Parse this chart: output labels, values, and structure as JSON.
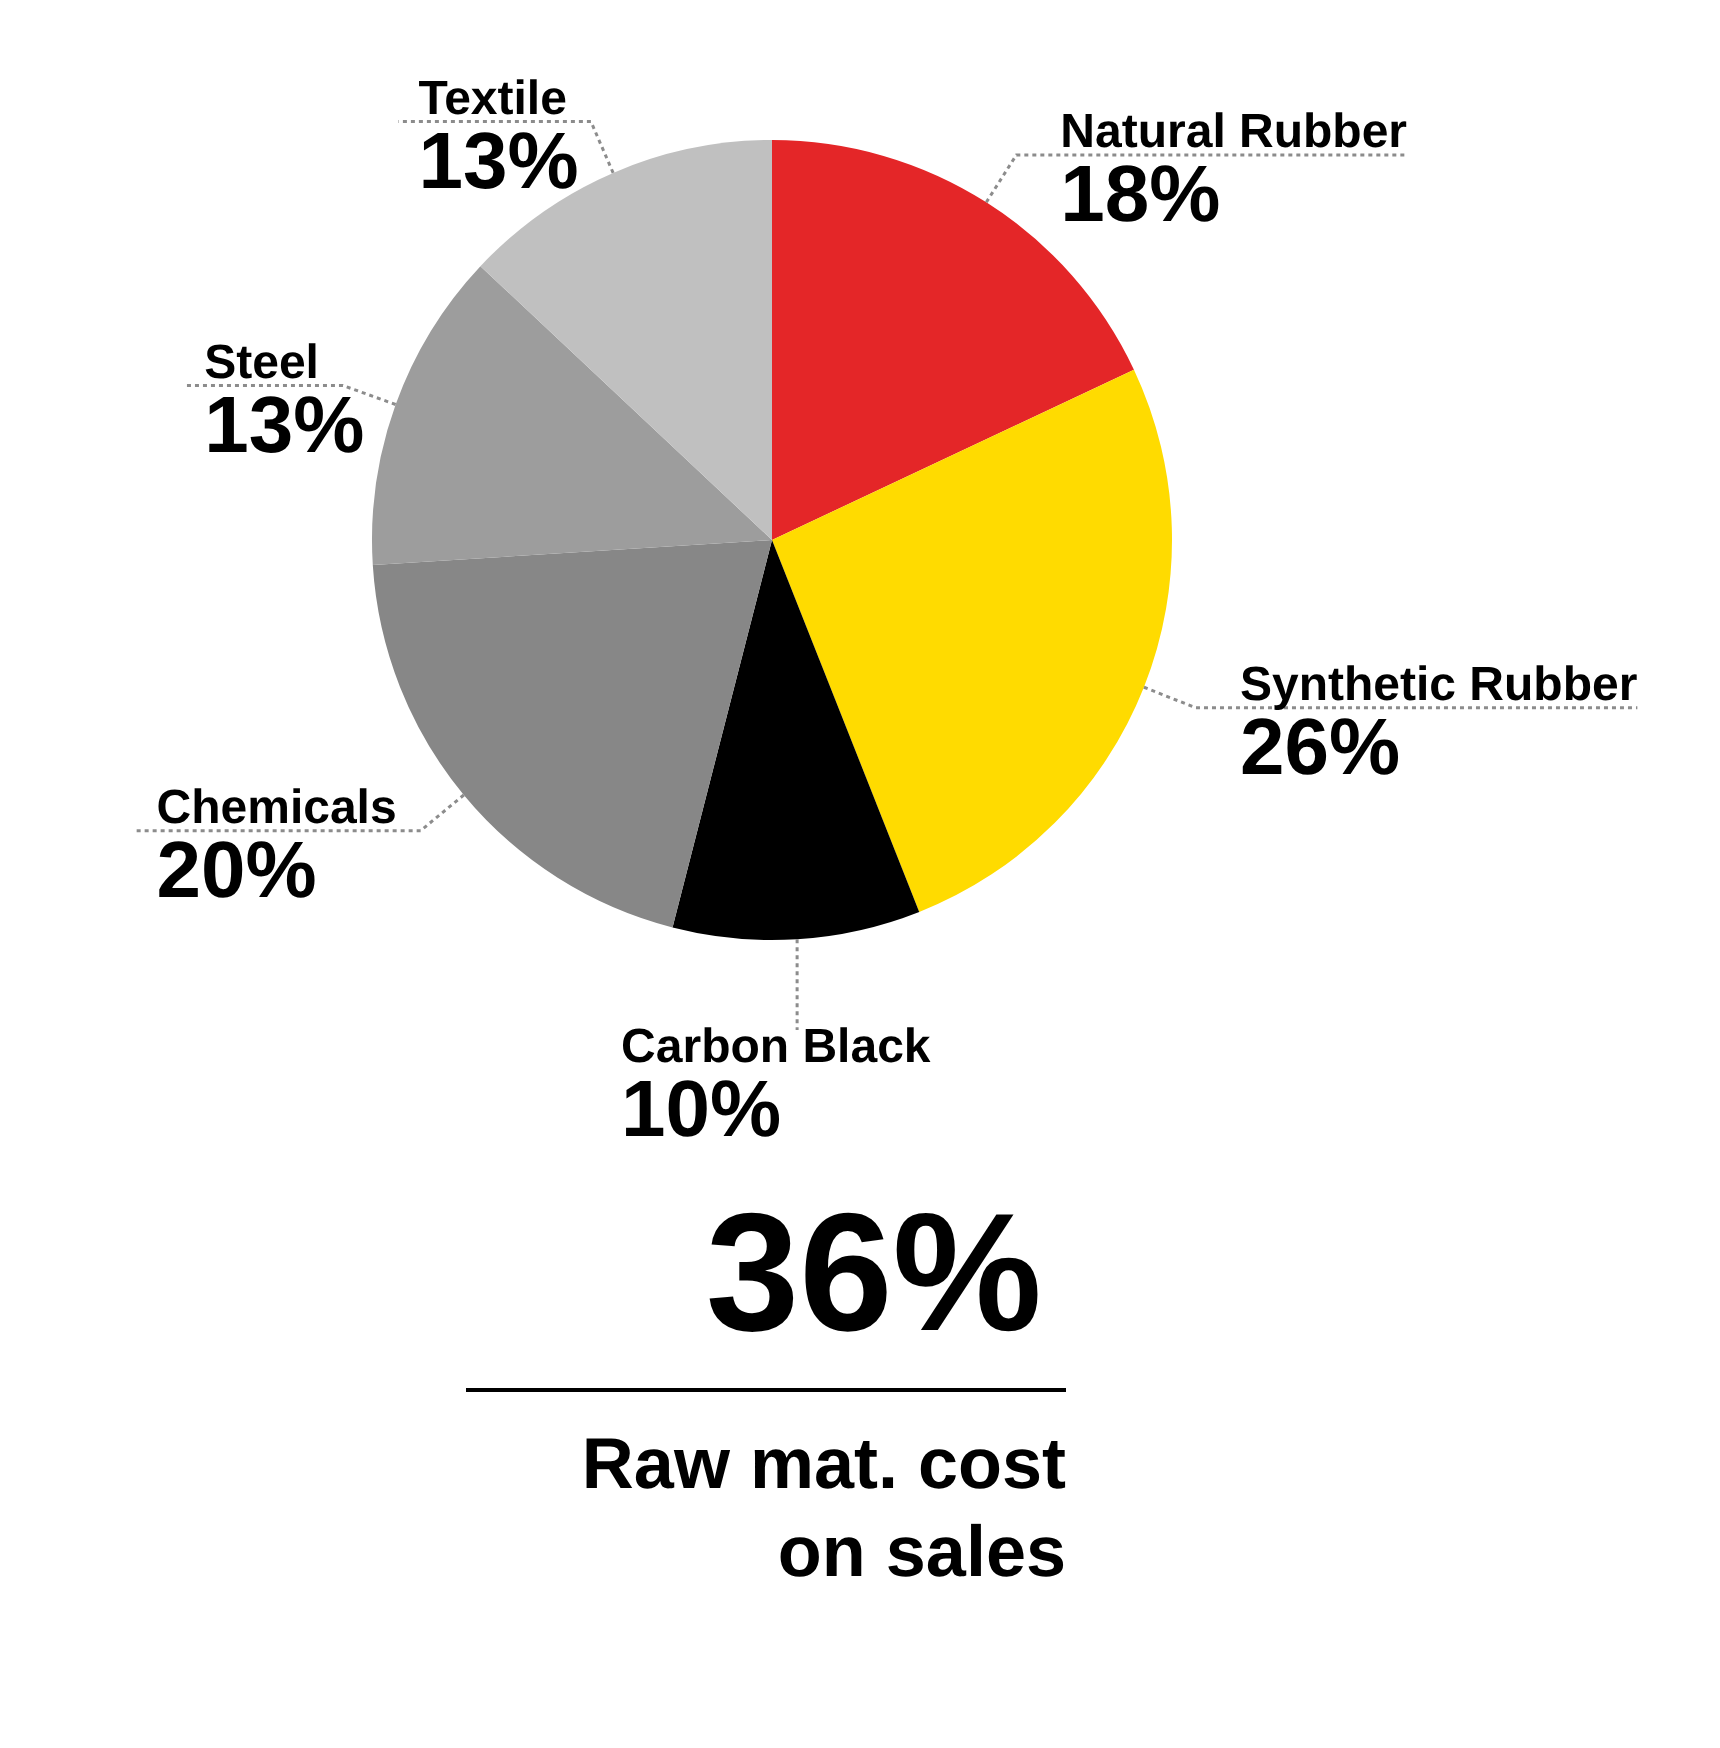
{
  "chart_data": {
    "type": "pie",
    "categories": [
      "Natural Rubber",
      "Synthetic Rubber",
      "Carbon Black",
      "Chemicals",
      "Steel",
      "Textile"
    ],
    "values": [
      18,
      26,
      10,
      20,
      13,
      13
    ],
    "colors": [
      "#e42628",
      "#ffdb00",
      "#000000",
      "#878787",
      "#9d9d9d",
      "#c0c0c0"
    ],
    "value_labels": [
      "18%",
      "26%",
      "10%",
      "20%",
      "13%",
      "13%"
    ],
    "legend": false,
    "annotations": [
      "36%",
      "Raw mat. cost on sales"
    ]
  }
}
